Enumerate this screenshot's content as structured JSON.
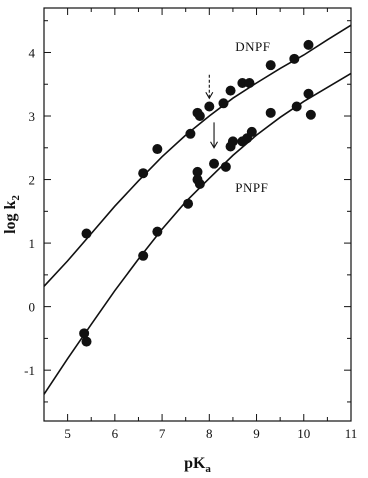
{
  "chart_data": {
    "type": "scatter",
    "title": "",
    "xlabel": "pK",
    "xlabel_sub": "a",
    "ylabel": "log k",
    "ylabel_sub": "2",
    "xlim": [
      4.5,
      11
    ],
    "ylim": [
      -1.8,
      4.7
    ],
    "xticks": [
      5,
      6,
      7,
      8,
      9,
      10,
      11
    ],
    "yticks": [
      -1,
      0,
      1,
      2,
      3,
      4
    ],
    "grid": false,
    "legend": "none",
    "series": [
      {
        "name": "DNPF",
        "points": [
          [
            5.4,
            1.15
          ],
          [
            6.6,
            2.1
          ],
          [
            6.9,
            2.48
          ],
          [
            7.6,
            2.72
          ],
          [
            7.75,
            3.05
          ],
          [
            7.8,
            3.0
          ],
          [
            8.0,
            3.15
          ],
          [
            8.3,
            3.2
          ],
          [
            8.45,
            3.4
          ],
          [
            8.7,
            3.52
          ],
          [
            8.85,
            3.52
          ],
          [
            9.3,
            3.8
          ],
          [
            9.8,
            3.9
          ],
          [
            10.1,
            4.12
          ]
        ],
        "curve": [
          [
            4.5,
            0.32
          ],
          [
            5.0,
            0.72
          ],
          [
            5.5,
            1.15
          ],
          [
            6.0,
            1.58
          ],
          [
            6.5,
            1.98
          ],
          [
            7.0,
            2.36
          ],
          [
            7.5,
            2.7
          ],
          [
            8.0,
            3.0
          ],
          [
            8.5,
            3.28
          ],
          [
            9.0,
            3.52
          ],
          [
            9.5,
            3.75
          ],
          [
            10.0,
            3.96
          ],
          [
            10.5,
            4.2
          ],
          [
            11.0,
            4.43
          ]
        ]
      },
      {
        "name": "PNPF",
        "points": [
          [
            5.35,
            -0.42
          ],
          [
            5.4,
            -0.55
          ],
          [
            6.6,
            0.8
          ],
          [
            6.9,
            1.18
          ],
          [
            7.55,
            1.62
          ],
          [
            7.75,
            2.12
          ],
          [
            7.75,
            2.0
          ],
          [
            7.8,
            1.93
          ],
          [
            8.1,
            2.25
          ],
          [
            8.35,
            2.2
          ],
          [
            8.45,
            2.52
          ],
          [
            8.5,
            2.6
          ],
          [
            8.7,
            2.6
          ],
          [
            8.8,
            2.65
          ],
          [
            8.9,
            2.75
          ],
          [
            9.3,
            3.05
          ],
          [
            9.85,
            3.15
          ],
          [
            10.1,
            3.35
          ],
          [
            10.15,
            3.02
          ]
        ],
        "curve": [
          [
            4.5,
            -1.38
          ],
          [
            5.0,
            -0.82
          ],
          [
            5.5,
            -0.28
          ],
          [
            6.0,
            0.25
          ],
          [
            6.5,
            0.75
          ],
          [
            7.0,
            1.22
          ],
          [
            7.5,
            1.65
          ],
          [
            8.0,
            2.02
          ],
          [
            8.5,
            2.38
          ],
          [
            9.0,
            2.7
          ],
          [
            9.5,
            2.98
          ],
          [
            10.0,
            3.23
          ],
          [
            10.5,
            3.45
          ],
          [
            11.0,
            3.67
          ]
        ]
      }
    ],
    "annotations": [
      {
        "type": "arrow",
        "x": 8.0,
        "y_from": 3.65,
        "y_to": 3.28,
        "style": "dashed"
      },
      {
        "type": "arrow",
        "x": 8.1,
        "y_from": 2.9,
        "y_to": 2.5,
        "style": "solid"
      }
    ]
  }
}
